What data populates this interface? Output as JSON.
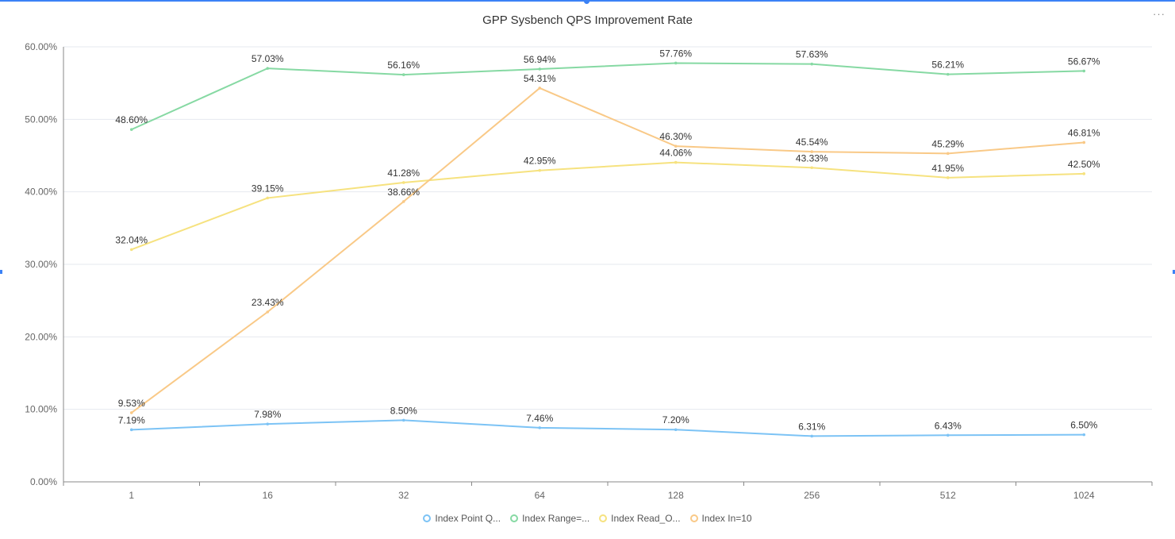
{
  "chart_data": {
    "type": "line",
    "title": "GPP Sysbench QPS Improvement Rate",
    "xlabel": "",
    "ylabel": "",
    "categories": [
      "1",
      "16",
      "32",
      "64",
      "128",
      "256",
      "512",
      "1024"
    ],
    "ylim": [
      0,
      60
    ],
    "yticks": [
      "0.00%",
      "10.00%",
      "20.00%",
      "30.00%",
      "40.00%",
      "50.00%",
      "60.00%"
    ],
    "grid": true,
    "legend_position": "bottom",
    "series": [
      {
        "name": "Index Point Q...",
        "color": "#7cc3f5",
        "values": [
          7.19,
          7.98,
          8.5,
          7.46,
          7.2,
          6.31,
          6.43,
          6.5
        ],
        "labels": [
          "7.19%",
          "7.98%",
          "8.50%",
          "7.46%",
          "7.20%",
          "6.31%",
          "6.43%",
          "6.50%"
        ]
      },
      {
        "name": "Index Range=...",
        "color": "#86d9a3",
        "values": [
          48.6,
          57.03,
          56.16,
          56.94,
          57.76,
          57.63,
          56.21,
          56.67
        ],
        "labels": [
          "48.60%",
          "57.03%",
          "56.16%",
          "56.94%",
          "57.76%",
          "57.63%",
          "56.21%",
          "56.67%"
        ]
      },
      {
        "name": "Index Read_O...",
        "color": "#f6e27f",
        "values": [
          32.04,
          39.15,
          41.28,
          42.95,
          44.06,
          43.33,
          41.95,
          42.5
        ],
        "labels": [
          "32.04%",
          "39.15%",
          "41.28%",
          "42.95%",
          "44.06%",
          "43.33%",
          "41.95%",
          "42.50%"
        ]
      },
      {
        "name": "Index In=10",
        "color": "#f9c987",
        "values": [
          9.53,
          23.43,
          38.66,
          54.31,
          46.3,
          45.54,
          45.29,
          46.81
        ],
        "labels": [
          "9.53%",
          "23.43%",
          "38.66%",
          "54.31%",
          "46.30%",
          "45.54%",
          "45.29%",
          "46.81%"
        ]
      }
    ]
  },
  "toolbar": {
    "more_label": "···"
  }
}
